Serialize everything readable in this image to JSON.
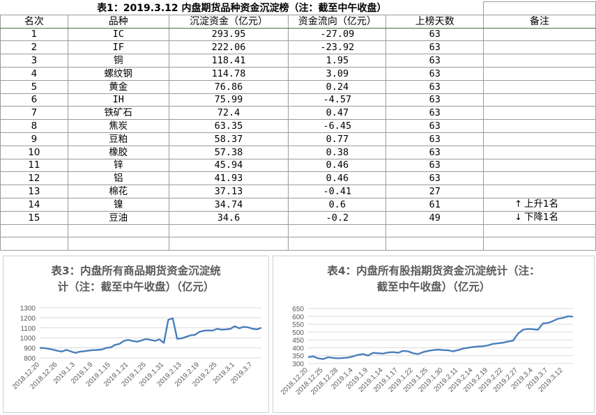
{
  "table": {
    "title": "表1：2019.3.12 内盘期货品种资金沉淀榜（注：截至中午收盘）",
    "headers": [
      "名次",
      "品种",
      "沉淀资金（亿元）",
      "资金流向（亿元）",
      "上榜天数",
      "备注"
    ],
    "rows": [
      [
        "1",
        "IC",
        "293.95",
        "-27.09",
        "63",
        ""
      ],
      [
        "2",
        "IF",
        "222.06",
        "-23.92",
        "63",
        ""
      ],
      [
        "3",
        "铜",
        "118.41",
        "1.95",
        "63",
        ""
      ],
      [
        "4",
        "螺纹钢",
        "114.78",
        "3.09",
        "63",
        ""
      ],
      [
        "5",
        "黄金",
        "76.86",
        "0.24",
        "63",
        ""
      ],
      [
        "6",
        "IH",
        "75.99",
        "-4.57",
        "63",
        ""
      ],
      [
        "7",
        "铁矿石",
        "72.4",
        "0.47",
        "63",
        ""
      ],
      [
        "8",
        "焦炭",
        "63.35",
        "-6.45",
        "63",
        ""
      ],
      [
        "9",
        "豆粕",
        "58.37",
        "0.77",
        "63",
        ""
      ],
      [
        "10",
        "橡胶",
        "57.38",
        "0.38",
        "63",
        ""
      ],
      [
        "11",
        "锌",
        "45.94",
        "0.46",
        "63",
        ""
      ],
      [
        "12",
        "铝",
        "41.93",
        "0.46",
        "63",
        ""
      ],
      [
        "13",
        "棉花",
        "37.13",
        "-0.41",
        "27",
        ""
      ],
      [
        "14",
        "镍",
        "34.74",
        "0.6",
        "61",
        "上升1名"
      ],
      [
        "15",
        "豆油",
        "34.6",
        "-0.2",
        "49",
        "下降1名"
      ]
    ],
    "note_arrows": {
      "上升1名": "↑",
      "下降1名": "↓"
    }
  },
  "chart_data": [
    {
      "type": "line",
      "title": "表3：内盘所有商品期货资金沉淀统\n计（注：截至中午收盘）（亿元）",
      "ylim": [
        800,
        1300
      ],
      "yticks": [
        800,
        900,
        1000,
        1100,
        1200,
        1300
      ],
      "xtick_labels": [
        "2018.12.20",
        "2018.12.26",
        "2019.1.3",
        "2019.1.9",
        "2019.1.15",
        "2019.1.21",
        "2019.1.25",
        "2019.1.31",
        "2019.2.13",
        "2019.2.19",
        "2019.2.25",
        "2019.3.1",
        "2019.3.7"
      ],
      "xtick_index": [
        0,
        4,
        8,
        12,
        16,
        20,
        24,
        28,
        32,
        36,
        40,
        44,
        48
      ],
      "grid": true,
      "color": "#4a7ebb",
      "values": [
        900,
        898,
        892,
        882,
        871,
        863,
        880,
        865,
        850,
        862,
        867,
        873,
        878,
        880,
        883,
        900,
        905,
        930,
        940,
        970,
        980,
        968,
        962,
        975,
        988,
        980,
        970,
        985,
        950,
        1180,
        1195,
        990,
        995,
        1010,
        1025,
        1030,
        1060,
        1070,
        1075,
        1072,
        1090,
        1082,
        1085,
        1090,
        1115,
        1095,
        1110,
        1105,
        1090,
        1085,
        1100
      ]
    },
    {
      "type": "line",
      "title": "表4：内盘所有股指期货资金沉淀统计（注：\n截至中午收盘）（亿元）",
      "ylim": [
        300,
        650
      ],
      "yticks": [
        300,
        350,
        400,
        450,
        500,
        550,
        600,
        650
      ],
      "xtick_labels": [
        "2018.12.20",
        "2018.12.25",
        "2018.12.28",
        "2019.1.4",
        "2019.1.9",
        "2019.1.14",
        "2019.1.17",
        "2019.1.22",
        "2019.1.25",
        "2019.1.30",
        "2019.2.11",
        "2019.2.14",
        "2019.2.19",
        "2019.2.22",
        "2019.2.27",
        "2019.3.4",
        "2019.3.7",
        "2019.3.12"
      ],
      "xtick_index": [
        0,
        3,
        6,
        9,
        12,
        15,
        18,
        21,
        24,
        27,
        30,
        33,
        36,
        39,
        42,
        45,
        48,
        51
      ],
      "grid": true,
      "color": "#4a7ebb",
      "values": [
        340,
        345,
        333,
        328,
        340,
        335,
        333,
        335,
        337,
        345,
        355,
        360,
        350,
        368,
        365,
        363,
        370,
        372,
        368,
        380,
        377,
        365,
        360,
        372,
        380,
        385,
        388,
        385,
        384,
        377,
        385,
        395,
        400,
        405,
        408,
        410,
        415,
        425,
        428,
        432,
        440,
        445,
        490,
        515,
        520,
        518,
        515,
        555,
        558,
        570,
        585,
        590,
        600,
        598
      ]
    }
  ]
}
